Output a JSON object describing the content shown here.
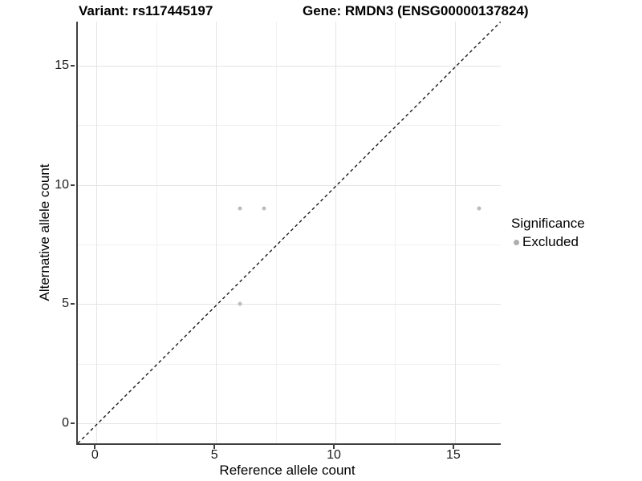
{
  "header": {
    "variant_title": "Variant: rs117445197",
    "gene_title": "Gene: RMDN3 (ENSG00000137824)"
  },
  "chart_data": {
    "type": "scatter",
    "title": "Variant: rs117445197",
    "subtitle": "Gene: RMDN3 (ENSG00000137824)",
    "xlabel": "Reference allele count",
    "ylabel": "Alternative allele count",
    "xlim": [
      -0.8,
      16.9
    ],
    "ylim": [
      -0.85,
      16.85
    ],
    "x_ticks": [
      0,
      5,
      10,
      15
    ],
    "y_ticks": [
      0,
      5,
      10,
      15
    ],
    "x_minor_gridlines": [
      2.5,
      7.5,
      12.5
    ],
    "y_minor_gridlines": [
      2.5,
      7.5,
      12.5
    ],
    "grid": "on",
    "series": [
      {
        "name": "Excluded",
        "marker": "circle",
        "color": "#bcbcbc",
        "points": [
          {
            "x": 6,
            "y": 9
          },
          {
            "x": 7,
            "y": 9
          },
          {
            "x": 16,
            "y": 9
          },
          {
            "x": 6,
            "y": 5
          }
        ]
      }
    ],
    "reference_line": {
      "equation": "y = x",
      "style": "dashed",
      "color": "#1a1a1a"
    },
    "legend": {
      "title": "Significance",
      "position": "right",
      "items": [
        {
          "label": "Excluded",
          "marker": "circle",
          "color": "#aeaeae"
        }
      ]
    }
  },
  "colors": {
    "background": "#ffffff",
    "axis_line": "#3f3f3f",
    "grid_major": "#e4e4e4",
    "grid_minor": "#f1f1f1",
    "tick_label": "#1a1a1a",
    "point": "#bcbcbc",
    "legend_marker": "#aeaeae"
  }
}
